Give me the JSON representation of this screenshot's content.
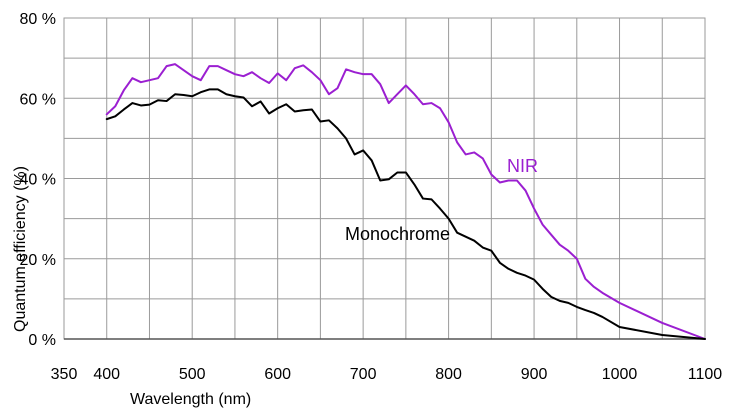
{
  "chart_data": {
    "type": "line",
    "title": "",
    "xlabel": "Wavelength (nm)",
    "ylabel": "Quantum efficiency (%)",
    "xlim": [
      350,
      1100
    ],
    "ylim": [
      0,
      80
    ],
    "grid": true,
    "x_grid_step": 50,
    "y_grid_step": 10,
    "x_ticks": [
      350,
      400,
      500,
      600,
      700,
      800,
      900,
      1000,
      1100
    ],
    "x_tick_labels": [
      "350",
      "400",
      "500",
      "600",
      "700",
      "800",
      "900",
      "1000",
      "1100"
    ],
    "y_ticks": [
      0,
      20,
      40,
      60,
      80
    ],
    "y_tick_labels": [
      "0 %",
      "20 %",
      "40 %",
      "60 %",
      "80 %"
    ],
    "series": [
      {
        "name": "NIR",
        "color": "#9b1fd1",
        "points": [
          [
            400,
            56.0
          ],
          [
            410,
            58.0
          ],
          [
            420,
            62.0
          ],
          [
            430,
            65.0
          ],
          [
            440,
            64.0
          ],
          [
            450,
            64.5
          ],
          [
            460,
            65.0
          ],
          [
            470,
            68.0
          ],
          [
            480,
            68.5
          ],
          [
            490,
            67.0
          ],
          [
            500,
            65.5
          ],
          [
            510,
            64.5
          ],
          [
            520,
            68.0
          ],
          [
            530,
            68.0
          ],
          [
            540,
            67.0
          ],
          [
            550,
            66.0
          ],
          [
            560,
            65.5
          ],
          [
            570,
            66.5
          ],
          [
            580,
            65.0
          ],
          [
            590,
            63.8
          ],
          [
            600,
            66.2
          ],
          [
            610,
            64.5
          ],
          [
            620,
            67.5
          ],
          [
            630,
            68.2
          ],
          [
            640,
            66.5
          ],
          [
            650,
            64.5
          ],
          [
            660,
            61.0
          ],
          [
            670,
            62.5
          ],
          [
            680,
            67.2
          ],
          [
            690,
            66.5
          ],
          [
            700,
            66.0
          ],
          [
            710,
            66.0
          ],
          [
            720,
            63.5
          ],
          [
            730,
            58.8
          ],
          [
            740,
            61.0
          ],
          [
            750,
            63.2
          ],
          [
            760,
            61.0
          ],
          [
            770,
            58.5
          ],
          [
            780,
            58.8
          ],
          [
            790,
            57.5
          ],
          [
            800,
            54.0
          ],
          [
            810,
            49.0
          ],
          [
            820,
            46.0
          ],
          [
            830,
            46.5
          ],
          [
            840,
            45.0
          ],
          [
            850,
            41.0
          ],
          [
            860,
            39.0
          ],
          [
            870,
            39.5
          ],
          [
            880,
            39.5
          ],
          [
            890,
            37.0
          ],
          [
            900,
            32.5
          ],
          [
            910,
            28.5
          ],
          [
            920,
            26.0
          ],
          [
            930,
            23.5
          ],
          [
            940,
            22.0
          ],
          [
            950,
            20.0
          ],
          [
            960,
            15.0
          ],
          [
            970,
            13.0
          ],
          [
            980,
            11.5
          ],
          [
            1000,
            9.0
          ],
          [
            1050,
            4.0
          ],
          [
            1100,
            0.0
          ]
        ]
      },
      {
        "name": "Monochrome",
        "color": "#000000",
        "points": [
          [
            400,
            54.8
          ],
          [
            410,
            55.5
          ],
          [
            420,
            57.2
          ],
          [
            430,
            58.8
          ],
          [
            440,
            58.2
          ],
          [
            450,
            58.4
          ],
          [
            460,
            59.5
          ],
          [
            470,
            59.3
          ],
          [
            480,
            61.0
          ],
          [
            490,
            60.8
          ],
          [
            500,
            60.5
          ],
          [
            510,
            61.5
          ],
          [
            520,
            62.2
          ],
          [
            530,
            62.2
          ],
          [
            540,
            61.0
          ],
          [
            550,
            60.5
          ],
          [
            560,
            60.2
          ],
          [
            570,
            58.0
          ],
          [
            580,
            59.2
          ],
          [
            590,
            56.2
          ],
          [
            600,
            57.5
          ],
          [
            610,
            58.5
          ],
          [
            620,
            56.7
          ],
          [
            630,
            57.0
          ],
          [
            640,
            57.2
          ],
          [
            650,
            54.2
          ],
          [
            660,
            54.5
          ],
          [
            670,
            52.5
          ],
          [
            680,
            50.0
          ],
          [
            690,
            46.0
          ],
          [
            700,
            47.0
          ],
          [
            710,
            44.5
          ],
          [
            720,
            39.5
          ],
          [
            730,
            39.8
          ],
          [
            740,
            41.5
          ],
          [
            750,
            41.5
          ],
          [
            760,
            38.5
          ],
          [
            770,
            35.0
          ],
          [
            780,
            34.8
          ],
          [
            790,
            32.5
          ],
          [
            800,
            30.0
          ],
          [
            810,
            26.5
          ],
          [
            820,
            25.5
          ],
          [
            830,
            24.5
          ],
          [
            840,
            22.8
          ],
          [
            850,
            22.0
          ],
          [
            860,
            19.0
          ],
          [
            870,
            17.5
          ],
          [
            880,
            16.5
          ],
          [
            890,
            15.8
          ],
          [
            900,
            14.8
          ],
          [
            910,
            12.5
          ],
          [
            920,
            10.5
          ],
          [
            930,
            9.5
          ],
          [
            940,
            9.0
          ],
          [
            950,
            8.0
          ],
          [
            960,
            7.2
          ],
          [
            970,
            6.5
          ],
          [
            980,
            5.5
          ],
          [
            1000,
            3.0
          ],
          [
            1050,
            1.0
          ],
          [
            1100,
            0.0
          ]
        ]
      }
    ],
    "annotations": [
      {
        "text": "NIR",
        "series": "NIR"
      },
      {
        "text": "Monochrome",
        "series": "Monochrome"
      }
    ]
  }
}
